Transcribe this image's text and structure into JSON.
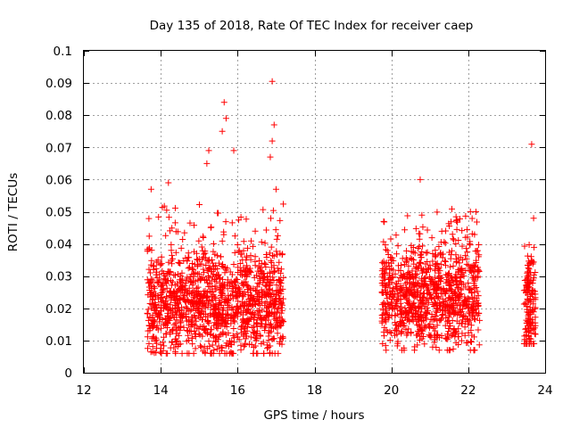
{
  "chart_data": {
    "type": "scatter",
    "title": "Day 135 of 2018, Rate Of TEC Index for receiver caep",
    "xlabel": "GPS time / hours",
    "ylabel": "ROTI / TECUs",
    "xlim": [
      12,
      24
    ],
    "ylim": [
      0,
      0.1
    ],
    "x_ticks": [
      "12",
      "14",
      "16",
      "18",
      "20",
      "22",
      "24"
    ],
    "y_ticks": [
      "0",
      "0.01",
      "0.02",
      "0.03",
      "0.04",
      "0.05",
      "0.06",
      "0.07",
      "0.08",
      "0.09",
      "0.1"
    ],
    "grid": true,
    "marker": "+",
    "series": [
      {
        "name": "ROTI",
        "color": "#ff0000",
        "notable_points": [
          {
            "x": 16.9,
            "y": 0.0905
          },
          {
            "x": 15.65,
            "y": 0.084
          },
          {
            "x": 15.7,
            "y": 0.079
          },
          {
            "x": 16.95,
            "y": 0.077
          },
          {
            "x": 15.6,
            "y": 0.075
          },
          {
            "x": 16.9,
            "y": 0.072
          },
          {
            "x": 15.9,
            "y": 0.069
          },
          {
            "x": 23.65,
            "y": 0.071
          },
          {
            "x": 15.25,
            "y": 0.069
          },
          {
            "x": 16.85,
            "y": 0.067
          },
          {
            "x": 15.2,
            "y": 0.065
          },
          {
            "x": 14.2,
            "y": 0.059
          },
          {
            "x": 13.75,
            "y": 0.057
          },
          {
            "x": 17.0,
            "y": 0.057
          },
          {
            "x": 20.75,
            "y": 0.06
          },
          {
            "x": 22.2,
            "y": 0.05
          },
          {
            "x": 19.8,
            "y": 0.047
          },
          {
            "x": 23.7,
            "y": 0.048
          }
        ],
        "clusters": [
          {
            "x_range": [
              13.65,
              17.2
            ],
            "y_range": [
              0.006,
              0.058
            ],
            "y_center": 0.021,
            "density": "high"
          },
          {
            "x_range": [
              19.75,
              22.3
            ],
            "y_range": [
              0.007,
              0.056
            ],
            "y_center": 0.023,
            "density": "high"
          },
          {
            "x_range": [
              23.45,
              23.75
            ],
            "y_range": [
              0.009,
              0.048
            ],
            "y_center": 0.02,
            "density": "medium"
          }
        ]
      }
    ]
  }
}
